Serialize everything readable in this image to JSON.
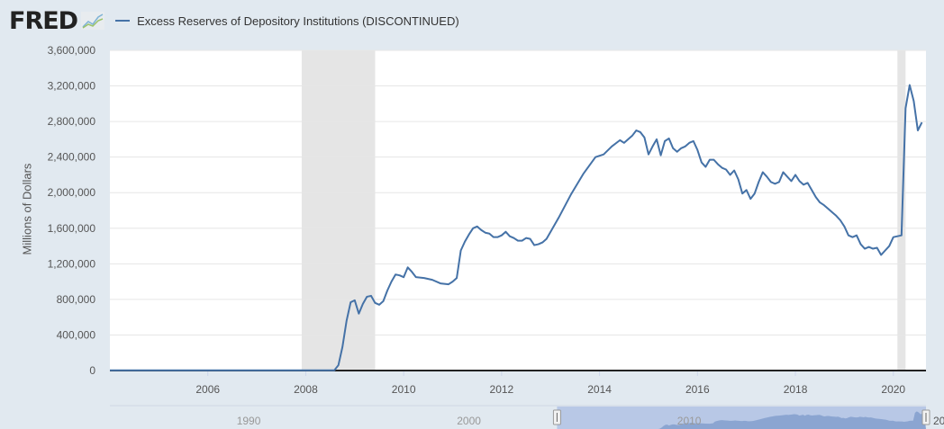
{
  "header": {
    "logo": "FRED",
    "legend_label": "Excess Reserves of Depository Institutions (DISCONTINUED)"
  },
  "colors": {
    "series": "#4572a7",
    "recession": "#e5e5e5",
    "background": "#e1e9f0"
  },
  "chart_data": {
    "type": "line",
    "title": "",
    "ylabel": "Millions of Dollars",
    "xlabel": "",
    "ylim": [
      0,
      3600000
    ],
    "xlim": [
      "2004-01",
      "2020-08"
    ],
    "yticks": [
      "0",
      "400,000",
      "800,000",
      "1,200,000",
      "1,600,000",
      "2,000,000",
      "2,400,000",
      "2,800,000",
      "3,200,000",
      "3,600,000"
    ],
    "xticks": [
      "2006",
      "2008",
      "2010",
      "2012",
      "2014",
      "2016",
      "2018",
      "2020"
    ],
    "grid": true,
    "recessions": [
      [
        "2007-12",
        "2009-06"
      ],
      [
        "2020-02",
        "2020-04"
      ]
    ],
    "navigator": {
      "labels": [
        "1990",
        "2000",
        "2010",
        "20"
      ],
      "selected_range": [
        "2004-01",
        "2020-08"
      ]
    },
    "series": [
      {
        "name": "Excess Reserves of Depository Institutions (DISCONTINUED)",
        "points": [
          [
            "2004-01",
            2000
          ],
          [
            "2008-08",
            2000
          ],
          [
            "2008-09",
            60000
          ],
          [
            "2008-10",
            267000
          ],
          [
            "2008-11",
            559000
          ],
          [
            "2008-12",
            767000
          ],
          [
            "2009-01",
            790000
          ],
          [
            "2009-02",
            640000
          ],
          [
            "2009-03",
            750000
          ],
          [
            "2009-04",
            830000
          ],
          [
            "2009-05",
            840000
          ],
          [
            "2009-06",
            760000
          ],
          [
            "2009-07",
            740000
          ],
          [
            "2009-08",
            780000
          ],
          [
            "2009-09",
            900000
          ],
          [
            "2009-10",
            1000000
          ],
          [
            "2009-11",
            1080000
          ],
          [
            "2009-12",
            1070000
          ],
          [
            "2010-01",
            1050000
          ],
          [
            "2010-02",
            1160000
          ],
          [
            "2010-03",
            1110000
          ],
          [
            "2010-04",
            1050000
          ],
          [
            "2010-06",
            1040000
          ],
          [
            "2010-08",
            1020000
          ],
          [
            "2010-10",
            980000
          ],
          [
            "2010-12",
            970000
          ],
          [
            "2011-01",
            1000000
          ],
          [
            "2011-02",
            1040000
          ],
          [
            "2011-03",
            1350000
          ],
          [
            "2011-04",
            1450000
          ],
          [
            "2011-05",
            1530000
          ],
          [
            "2011-06",
            1600000
          ],
          [
            "2011-07",
            1620000
          ],
          [
            "2011-08",
            1580000
          ],
          [
            "2011-09",
            1550000
          ],
          [
            "2011-10",
            1540000
          ],
          [
            "2011-11",
            1500000
          ],
          [
            "2011-12",
            1500000
          ],
          [
            "2012-01",
            1520000
          ],
          [
            "2012-02",
            1560000
          ],
          [
            "2012-03",
            1510000
          ],
          [
            "2012-04",
            1490000
          ],
          [
            "2012-05",
            1460000
          ],
          [
            "2012-06",
            1460000
          ],
          [
            "2012-07",
            1490000
          ],
          [
            "2012-08",
            1480000
          ],
          [
            "2012-09",
            1410000
          ],
          [
            "2012-10",
            1420000
          ],
          [
            "2012-11",
            1440000
          ],
          [
            "2012-12",
            1480000
          ],
          [
            "2013-01",
            1560000
          ],
          [
            "2013-03",
            1720000
          ],
          [
            "2013-06",
            1980000
          ],
          [
            "2013-09",
            2210000
          ],
          [
            "2013-12",
            2400000
          ],
          [
            "2014-02",
            2430000
          ],
          [
            "2014-04",
            2520000
          ],
          [
            "2014-06",
            2590000
          ],
          [
            "2014-07",
            2560000
          ],
          [
            "2014-08",
            2600000
          ],
          [
            "2014-09",
            2640000
          ],
          [
            "2014-10",
            2700000
          ],
          [
            "2014-11",
            2680000
          ],
          [
            "2014-12",
            2620000
          ],
          [
            "2015-01",
            2430000
          ],
          [
            "2015-02",
            2520000
          ],
          [
            "2015-03",
            2600000
          ],
          [
            "2015-04",
            2420000
          ],
          [
            "2015-05",
            2580000
          ],
          [
            "2015-06",
            2610000
          ],
          [
            "2015-07",
            2500000
          ],
          [
            "2015-08",
            2460000
          ],
          [
            "2015-09",
            2500000
          ],
          [
            "2015-10",
            2520000
          ],
          [
            "2015-11",
            2560000
          ],
          [
            "2015-12",
            2580000
          ],
          [
            "2016-01",
            2480000
          ],
          [
            "2016-02",
            2340000
          ],
          [
            "2016-03",
            2290000
          ],
          [
            "2016-04",
            2370000
          ],
          [
            "2016-05",
            2370000
          ],
          [
            "2016-06",
            2320000
          ],
          [
            "2016-07",
            2280000
          ],
          [
            "2016-08",
            2260000
          ],
          [
            "2016-09",
            2200000
          ],
          [
            "2016-10",
            2250000
          ],
          [
            "2016-11",
            2150000
          ],
          [
            "2016-12",
            1990000
          ],
          [
            "2017-01",
            2030000
          ],
          [
            "2017-02",
            1930000
          ],
          [
            "2017-03",
            1990000
          ],
          [
            "2017-04",
            2120000
          ],
          [
            "2017-05",
            2230000
          ],
          [
            "2017-06",
            2180000
          ],
          [
            "2017-07",
            2120000
          ],
          [
            "2017-08",
            2100000
          ],
          [
            "2017-09",
            2120000
          ],
          [
            "2017-10",
            2230000
          ],
          [
            "2017-11",
            2180000
          ],
          [
            "2017-12",
            2130000
          ],
          [
            "2018-01",
            2200000
          ],
          [
            "2018-02",
            2130000
          ],
          [
            "2018-03",
            2090000
          ],
          [
            "2018-04",
            2110000
          ],
          [
            "2018-05",
            2030000
          ],
          [
            "2018-06",
            1950000
          ],
          [
            "2018-07",
            1890000
          ],
          [
            "2018-08",
            1860000
          ],
          [
            "2018-09",
            1820000
          ],
          [
            "2018-10",
            1780000
          ],
          [
            "2018-11",
            1740000
          ],
          [
            "2018-12",
            1690000
          ],
          [
            "2019-01",
            1620000
          ],
          [
            "2019-02",
            1520000
          ],
          [
            "2019-03",
            1500000
          ],
          [
            "2019-04",
            1520000
          ],
          [
            "2019-05",
            1420000
          ],
          [
            "2019-06",
            1370000
          ],
          [
            "2019-07",
            1390000
          ],
          [
            "2019-08",
            1370000
          ],
          [
            "2019-09",
            1380000
          ],
          [
            "2019-10",
            1300000
          ],
          [
            "2019-11",
            1350000
          ],
          [
            "2019-12",
            1400000
          ],
          [
            "2020-01",
            1500000
          ],
          [
            "2020-02",
            1510000
          ],
          [
            "2020-03",
            1520000
          ],
          [
            "2020-04",
            2950000
          ],
          [
            "2020-05",
            3210000
          ],
          [
            "2020-06",
            3030000
          ],
          [
            "2020-07",
            2700000
          ],
          [
            "2020-08",
            2790000
          ]
        ]
      }
    ]
  }
}
